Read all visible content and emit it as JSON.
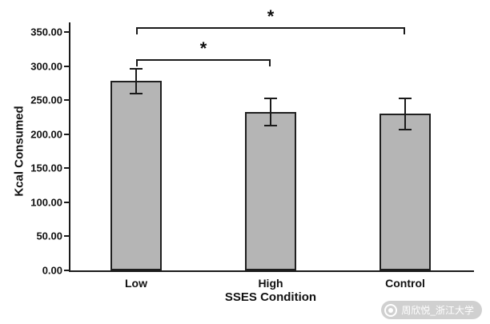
{
  "chart_data": {
    "type": "bar",
    "categories": [
      "Low",
      "High",
      "Control"
    ],
    "values": [
      278,
      233,
      230
    ],
    "error_bars": [
      18,
      20,
      23
    ],
    "title": "",
    "xlabel": "SSES Condition",
    "ylabel": "Kcal Consumed",
    "ylim": [
      0,
      350
    ],
    "ytick_step": 50,
    "ytick_decimals": 2,
    "grid": false,
    "legend": "none",
    "bar_color": "#b5b5b5",
    "bar_border_color": "#1f1f1f",
    "significance_brackets": [
      {
        "from": 0,
        "to": 1,
        "label": "*",
        "y_value": 310
      },
      {
        "from": 0,
        "to": 2,
        "label": "*",
        "y_value": 357
      }
    ]
  },
  "watermark": {
    "icon": "weibo-watermark-icon",
    "text": "周欣悦_浙江大学"
  }
}
